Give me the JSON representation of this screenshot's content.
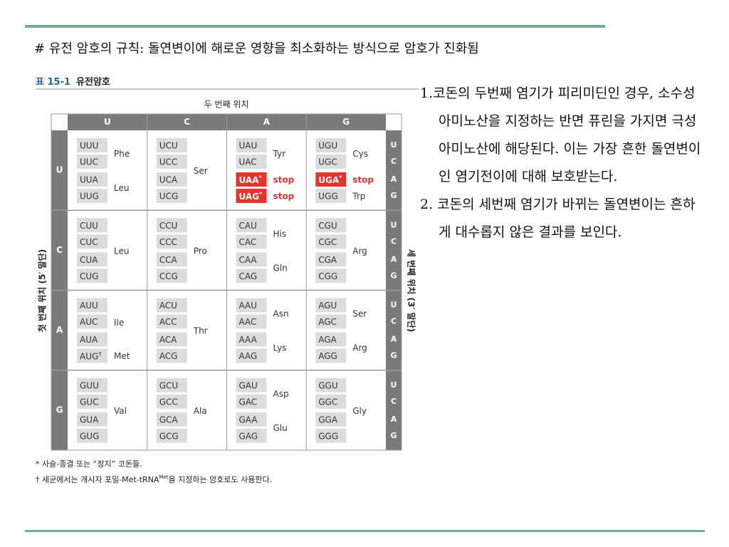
{
  "title": "# 유전 암호의 규칙: 돌연변이에 해로운 영향을 최소화하는 방식으로 암호가 진화됨",
  "table": {
    "label": "표 15-1",
    "name": "유전암호",
    "second_position_label": "두 번째 위치",
    "first_position_label": "첫 번째 위치 (5′ 말단)",
    "third_position_label": "세 번째 위치 (3′ 말단)",
    "columns": [
      "U",
      "C",
      "A",
      "G"
    ],
    "rows": [
      "U",
      "C",
      "A",
      "G"
    ],
    "third_bases": [
      "U",
      "C",
      "A",
      "G"
    ],
    "cells": [
      [
        [
          {
            "codons": [
              "UUU",
              "UUC"
            ],
            "amino": "Phe"
          },
          {
            "codons": [
              "UUA",
              "UUG"
            ],
            "amino": "Leu"
          }
        ],
        [
          {
            "codons": [
              "UCU",
              "UCC",
              "UCA",
              "UCG"
            ],
            "amino": "Ser"
          }
        ],
        [
          {
            "codons": [
              "UAU",
              "UAC"
            ],
            "amino": "Tyr"
          },
          {
            "codons": [
              {
                "text": "UAA",
                "sup": "*",
                "highlight": true
              }
            ],
            "amino": "stop"
          },
          {
            "codons": [
              {
                "text": "UAG",
                "sup": "*",
                "highlight": true
              }
            ],
            "amino": "stop"
          }
        ],
        [
          {
            "codons": [
              "UGU",
              "UGC"
            ],
            "amino": "Cys"
          },
          {
            "codons": [
              {
                "text": "UGA",
                "sup": "*",
                "highlight": true
              }
            ],
            "amino": "stop"
          },
          {
            "codons": [
              "UGG"
            ],
            "amino": "Trp"
          }
        ]
      ],
      [
        [
          {
            "codons": [
              "CUU",
              "CUC",
              "CUA",
              "CUG"
            ],
            "amino": "Leu"
          }
        ],
        [
          {
            "codons": [
              "CCU",
              "CCC",
              "CCA",
              "CCG"
            ],
            "amino": "Pro"
          }
        ],
        [
          {
            "codons": [
              "CAU",
              "CAC"
            ],
            "amino": "His"
          },
          {
            "codons": [
              "CAA",
              "CAG"
            ],
            "amino": "Gln"
          }
        ],
        [
          {
            "codons": [
              "CGU",
              "CGC",
              "CGA",
              "CGG"
            ],
            "amino": "Arg"
          }
        ]
      ],
      [
        [
          {
            "codons": [
              "AUU",
              "AUC",
              "AUA"
            ],
            "amino": "Ile"
          },
          {
            "codons": [
              {
                "text": "AUG",
                "sup": "†"
              }
            ],
            "amino": "Met"
          }
        ],
        [
          {
            "codons": [
              "ACU",
              "ACC",
              "ACA",
              "ACG"
            ],
            "amino": "Thr"
          }
        ],
        [
          {
            "codons": [
              "AAU",
              "AAC"
            ],
            "amino": "Asn"
          },
          {
            "codons": [
              "AAA",
              "AAG"
            ],
            "amino": "Lys"
          }
        ],
        [
          {
            "codons": [
              "AGU",
              "AGC"
            ],
            "amino": "Ser"
          },
          {
            "codons": [
              "AGA",
              "AGG"
            ],
            "amino": "Arg"
          }
        ]
      ],
      [
        [
          {
            "codons": [
              "GUU",
              "GUC",
              "GUA",
              "GUG"
            ],
            "amino": "Val"
          }
        ],
        [
          {
            "codons": [
              "GCU",
              "GCC",
              "GCA",
              "GCG"
            ],
            "amino": "Ala"
          }
        ],
        [
          {
            "codons": [
              "GAU",
              "GAC"
            ],
            "amino": "Asp"
          },
          {
            "codons": [
              "GAA",
              "GAG"
            ],
            "amino": "Glu"
          }
        ],
        [
          {
            "codons": [
              "GGU",
              "GGC",
              "GGA",
              "GGG"
            ],
            "amino": "Gly"
          }
        ]
      ]
    ],
    "footnotes": [
      {
        "text": "* 사슬-종결 또는 “정지” 코돈들."
      },
      {
        "text": "† 세균에서는 개시자 포밀-Met-tRNA",
        "sup": "Met",
        "after": "을 지정하는 암호로도 사용한다."
      }
    ]
  },
  "points": [
    "1.코돈의 두번째 염기가 피리미딘인 경우, 소수성 아미노산을 지정하는 반면 퓨린을 가지면 극성 아미노산에 해당된다. 이는 가장 흔한 돌연변이인 염기전이에 대해 보호받는다.",
    "2. 코돈의 세번째 염기가 바뀌는 돌연변이는 흔하게 대수롭지 않은 결과를 보인다."
  ]
}
